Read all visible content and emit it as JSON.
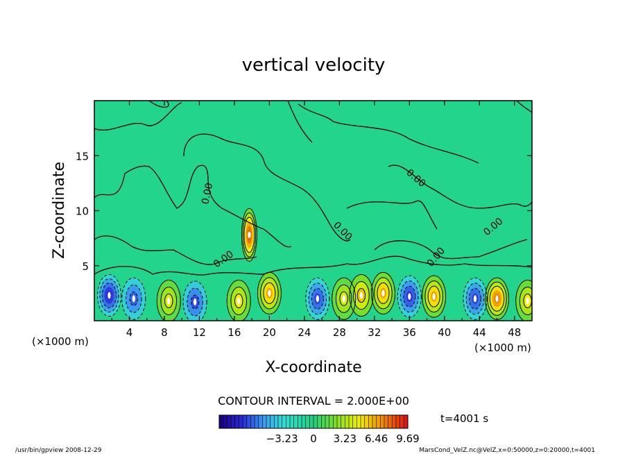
{
  "chart_data": {
    "type": "heatmap",
    "title": "vertical velocity",
    "xlabel": "X-coordinate",
    "ylabel": "Z-coordinate",
    "x_unit_left": "(×1000 m)",
    "x_unit_right": "(×1000 m)",
    "xlim": [
      0,
      50
    ],
    "ylim": [
      0,
      20
    ],
    "x_ticks": [
      "4",
      "8",
      "12",
      "16",
      "20",
      "24",
      "28",
      "32",
      "36",
      "40",
      "44",
      "48"
    ],
    "y_ticks": [
      "5",
      "10",
      "15"
    ],
    "contour_labels": [
      "0.00",
      "0.00",
      "0.00",
      "0.00",
      "0.00",
      "0.00"
    ],
    "contour_interval": "CONTOUR INTERVAL = 2.000E+00",
    "time_label": "t=4001 s",
    "colorbar_ticks": [
      "−3.23",
      "0",
      "3.23",
      "6.46",
      "9.69"
    ],
    "colorbar_range": [
      -9.69,
      9.69
    ],
    "footer_left": "/usr/bin/gpview   2008-12-29",
    "footer_right": "MarsCond_VelZ.nc@VelZ,x=0:50000,z=0:20000,t=4001",
    "low_level_cells": [
      {
        "x": 1.7,
        "z": 2.3,
        "w": -7.5
      },
      {
        "x": 4.5,
        "z": 2.0,
        "w": -5.0
      },
      {
        "x": 8.5,
        "z": 1.8,
        "w": 4.0
      },
      {
        "x": 11.5,
        "z": 1.7,
        "w": -5.5
      },
      {
        "x": 16.5,
        "z": 1.8,
        "w": 4.5
      },
      {
        "x": 20.0,
        "z": 2.5,
        "w": 6.5
      },
      {
        "x": 25.5,
        "z": 2.0,
        "w": -6.0
      },
      {
        "x": 28.5,
        "z": 2.0,
        "w": 4.0
      },
      {
        "x": 30.5,
        "z": 2.3,
        "w": 5.5
      },
      {
        "x": 33.0,
        "z": 2.5,
        "w": 6.5
      },
      {
        "x": 36.0,
        "z": 2.2,
        "w": -6.5
      },
      {
        "x": 38.8,
        "z": 2.2,
        "w": 6.5
      },
      {
        "x": 43.5,
        "z": 2.0,
        "w": -6.0
      },
      {
        "x": 46.0,
        "z": 2.0,
        "w": 8.0
      },
      {
        "x": 49.5,
        "z": 1.8,
        "w": 4.5
      }
    ],
    "plume": {
      "x": 17.7,
      "z": 7.8,
      "w": 9.0
    }
  }
}
